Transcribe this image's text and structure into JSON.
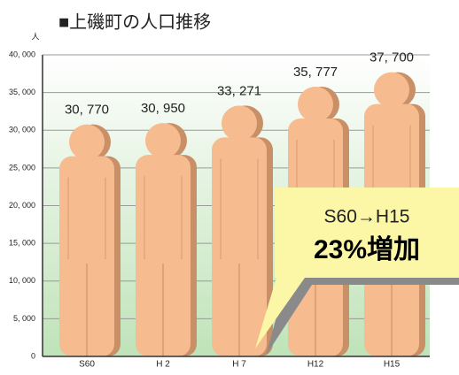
{
  "chart_data": {
    "type": "bar",
    "title": "■上磯町の人口推移",
    "ylabel": "人",
    "categories": [
      "S60",
      "H 2",
      "H 7",
      "H12",
      "H15"
    ],
    "values": [
      30770,
      30950,
      33271,
      35777,
      37700
    ],
    "value_labels": [
      "30, 770",
      "30, 950",
      "33, 271",
      "35, 777",
      "37, 700"
    ],
    "color": "#f6bb8e",
    "ylim": [
      0,
      40000
    ],
    "yticks": [
      0,
      {
        "value": 5000,
        "label": "5, 000"
      },
      {
        "value": 10000,
        "label": "10, 000"
      },
      {
        "value": 15000,
        "label": "15, 000"
      },
      {
        "value": 20000,
        "label": "20, 000"
      },
      {
        "value": 25000,
        "label": "25, 000"
      },
      {
        "value": 30000,
        "label": "30, 000"
      },
      {
        "value": 35000,
        "label": "35, 000"
      },
      {
        "value": 40000,
        "label": "40, 000"
      }
    ],
    "grid": true,
    "annotations": [
      "S60→H15",
      "23%増加"
    ]
  }
}
